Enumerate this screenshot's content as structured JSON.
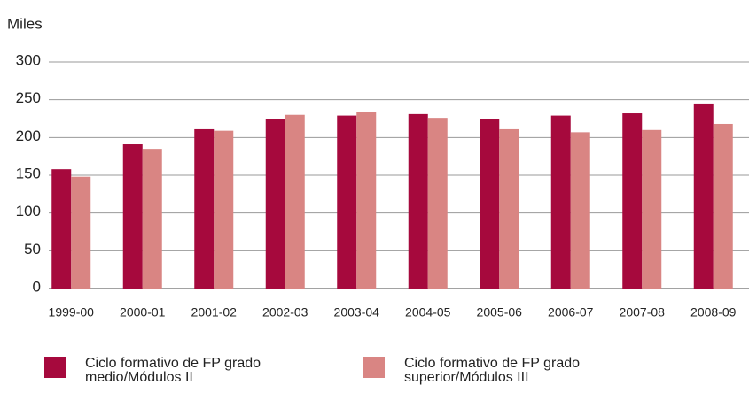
{
  "chart_data": {
    "type": "bar",
    "y_label": "Miles",
    "categories": [
      "1999-00",
      "2000-01",
      "2001-02",
      "2002-03",
      "2003-04",
      "2004-05",
      "2005-06",
      "2006-07",
      "2007-08",
      "2008-09"
    ],
    "series": [
      {
        "name": "Ciclo formativo de FP grado medio/Módulos II",
        "color": "#a6093d",
        "values": [
          158,
          191,
          211,
          225,
          229,
          231,
          225,
          229,
          232,
          245
        ]
      },
      {
        "name": "Ciclo formativo de FP grado superior/Módulos III",
        "color": "#d98583",
        "values": [
          148,
          185,
          209,
          230,
          234,
          226,
          211,
          207,
          210,
          218
        ]
      }
    ],
    "ylim": [
      0,
      300
    ],
    "yticks": [
      0,
      50,
      100,
      150,
      200,
      250,
      300
    ],
    "grid": true
  }
}
